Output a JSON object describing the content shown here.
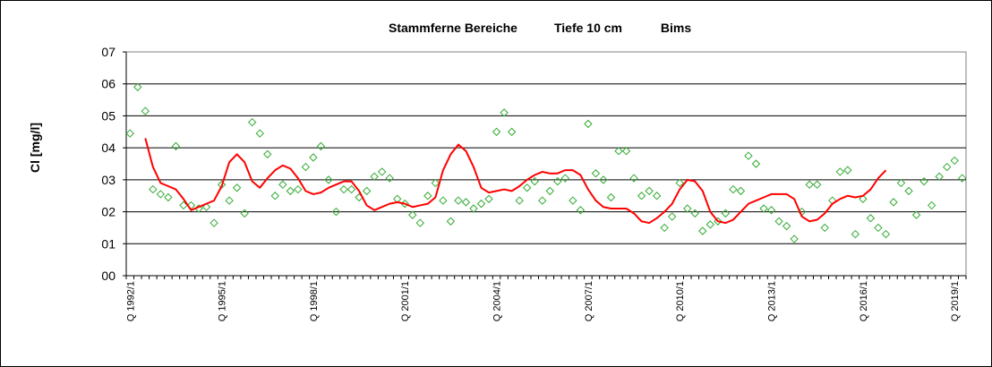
{
  "chart_data": {
    "type": "line",
    "title_parts": [
      "Stammferne Bereiche",
      "Tiefe  10 cm",
      "Bims"
    ],
    "ylabel": "Cl [mg/l]",
    "ylim": [
      0,
      7
    ],
    "y_tick_labels": [
      "00",
      "01",
      "02",
      "03",
      "04",
      "05",
      "06",
      "07"
    ],
    "x_tick_labels": [
      "Q 1992/1",
      "Q 1995/1",
      "Q 1998/1",
      "Q 2001/1",
      "Q 2004/1",
      "Q 2007/1",
      "Q 2010/1",
      "Q 2013/1",
      "Q 2016/1",
      "Q 2019/1"
    ],
    "grid": true,
    "x_count": 110,
    "series": [
      {
        "style": "markers",
        "color": "#33aa33",
        "values": [
          4.45,
          5.9,
          5.15,
          2.7,
          2.55,
          2.45,
          4.05,
          2.2,
          2.2,
          2.1,
          2.15,
          1.65,
          2.85,
          2.35,
          2.75,
          1.95,
          4.8,
          4.45,
          3.8,
          2.5,
          2.85,
          2.65,
          2.7,
          3.4,
          3.7,
          4.05,
          3.0,
          2.0,
          2.7,
          2.7,
          2.45,
          2.65,
          3.1,
          3.25,
          3.05,
          2.4,
          2.25,
          1.9,
          1.65,
          2.5,
          2.9,
          2.35,
          1.7,
          2.35,
          2.3,
          2.1,
          2.25,
          2.4,
          4.5,
          5.1,
          4.5,
          2.35,
          2.75,
          2.95,
          2.35,
          2.65,
          2.95,
          3.05,
          2.35,
          2.05,
          4.75,
          3.2,
          3.0,
          2.45,
          3.9,
          3.9,
          3.05,
          2.5,
          2.65,
          2.5,
          1.5,
          1.85,
          2.9,
          2.1,
          1.95,
          1.4,
          1.6,
          1.7,
          1.95,
          2.7,
          2.65,
          3.75,
          3.5,
          2.1,
          2.05,
          1.7,
          1.55,
          1.15,
          2.0,
          2.85,
          2.85,
          1.5,
          2.35,
          3.25,
          3.3,
          1.3,
          2.4,
          1.8,
          1.5,
          1.3,
          2.3,
          2.9,
          2.65,
          1.9,
          2.95,
          2.2,
          3.1,
          3.4,
          3.6,
          3.05
        ]
      },
      {
        "style": "line",
        "color": "#ff0000",
        "start_index": 2,
        "values": [
          4.3,
          3.4,
          2.9,
          2.8,
          2.7,
          2.4,
          2.05,
          2.15,
          2.25,
          2.35,
          2.8,
          3.55,
          3.8,
          3.55,
          2.95,
          2.75,
          3.05,
          3.3,
          3.45,
          3.35,
          3.05,
          2.65,
          2.55,
          2.6,
          2.75,
          2.85,
          2.95,
          2.95,
          2.65,
          2.2,
          2.05,
          2.15,
          2.25,
          2.3,
          2.25,
          2.15,
          2.2,
          2.25,
          2.45,
          3.3,
          3.8,
          4.1,
          3.9,
          3.4,
          2.75,
          2.6,
          2.65,
          2.7,
          2.65,
          2.8,
          3.0,
          3.15,
          3.25,
          3.2,
          3.2,
          3.3,
          3.3,
          3.15,
          2.7,
          2.35,
          2.15,
          2.1,
          2.1,
          2.1,
          1.95,
          1.7,
          1.65,
          1.8,
          2.0,
          2.25,
          2.7,
          3.0,
          2.95,
          2.65,
          2.0,
          1.7,
          1.65,
          1.75,
          2.0,
          2.25,
          2.35,
          2.45,
          2.55,
          2.55,
          2.55,
          2.4,
          1.85,
          1.7,
          1.75,
          1.95,
          2.25,
          2.4,
          2.5,
          2.45,
          2.5,
          2.7,
          3.05,
          3.3
        ]
      }
    ]
  }
}
